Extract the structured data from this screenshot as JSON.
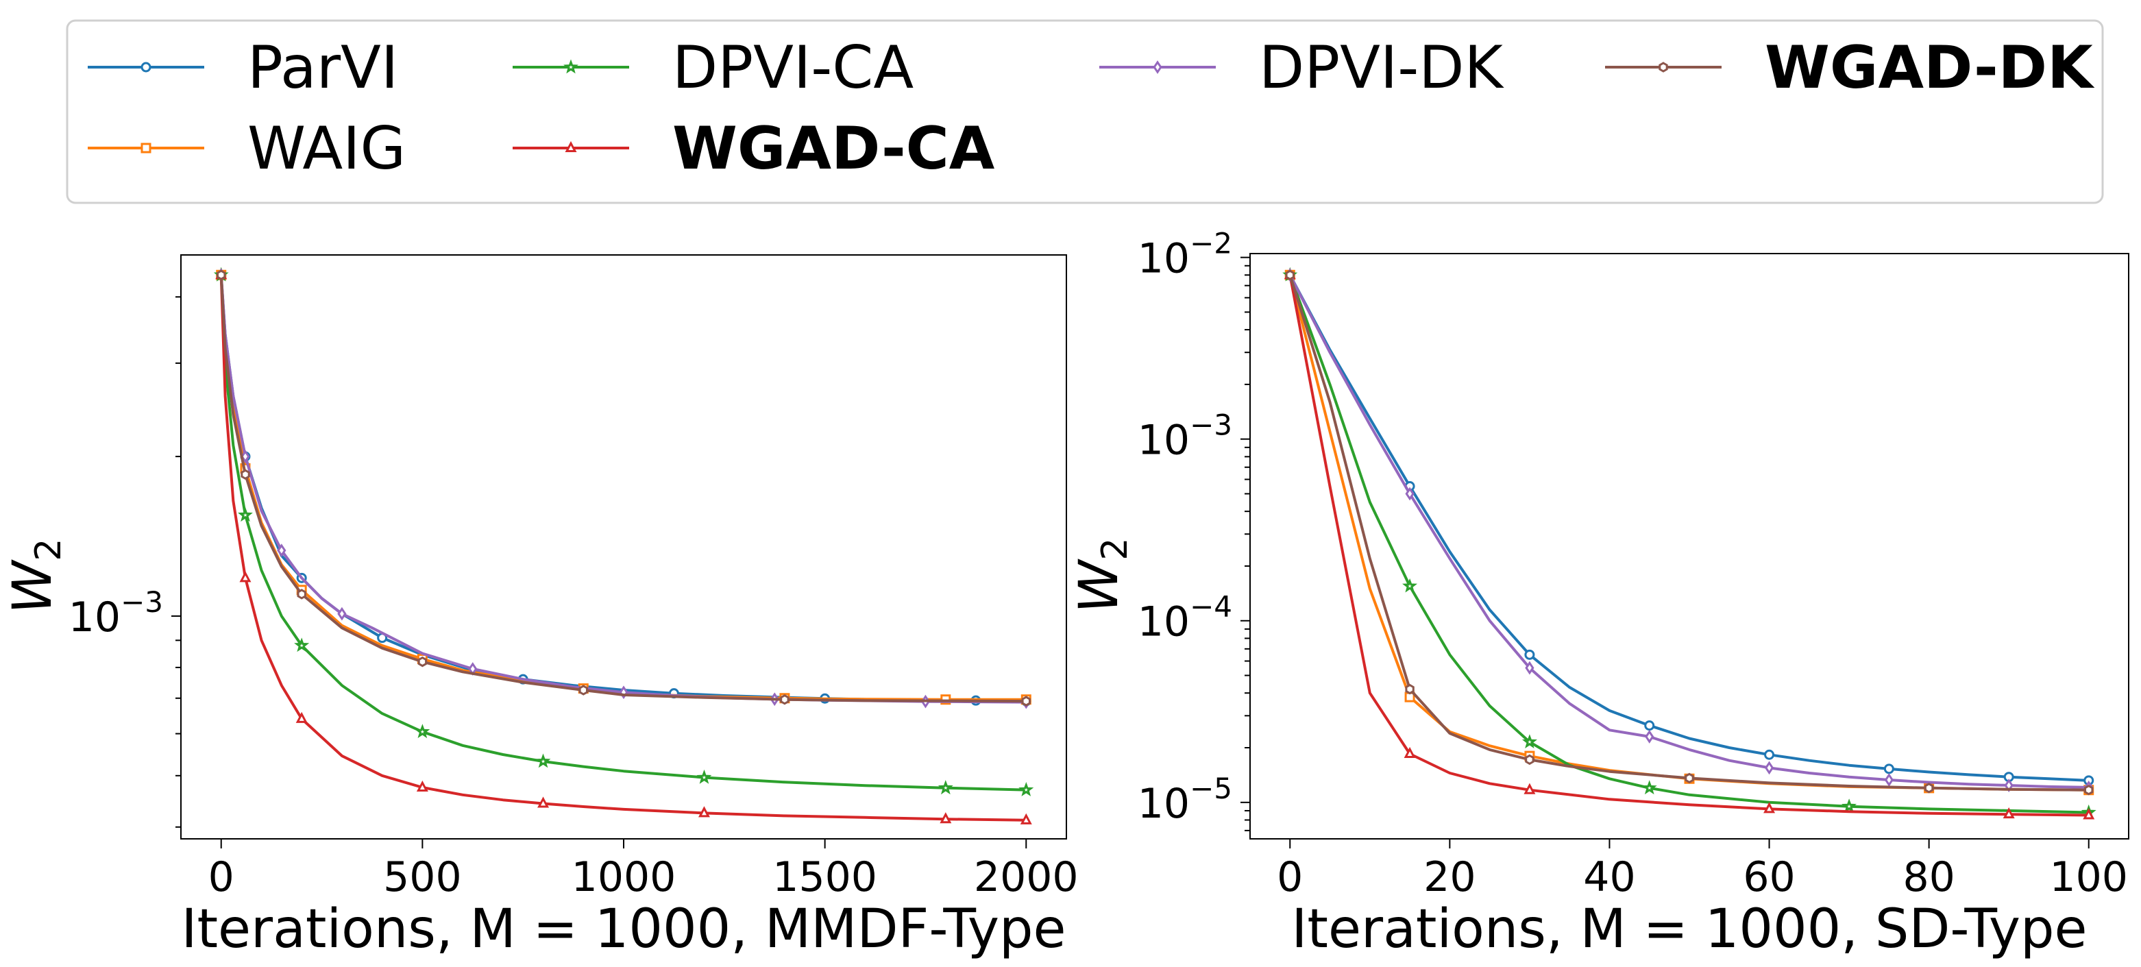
{
  "chart_data": [
    {
      "type": "line",
      "xlabel": "Iterations, M = 1000, MMDF-Type",
      "ylabel": "W",
      "ylabel_sub": "2",
      "yscale": "log",
      "xlim": [
        -100,
        2100
      ],
      "ylim": [
        0.00038,
        0.0048
      ],
      "x_ticks": [
        0,
        500,
        1000,
        1500,
        2000
      ],
      "x_tick_labels": [
        "0",
        "500",
        "1000",
        "1500",
        "2000"
      ],
      "y_major_ticks": [
        {
          "value": 0.001,
          "base": "10",
          "exp": "−3"
        }
      ],
      "series": [
        {
          "name": "ParVI",
          "x": [
            0,
            10,
            30,
            60,
            100,
            150,
            200,
            250,
            300,
            400,
            500,
            625,
            750,
            875,
            1000,
            1125,
            1250,
            1375,
            1500,
            1625,
            1750,
            1875,
            2000
          ],
          "y": [
            0.0044,
            0.0034,
            0.0026,
            0.002,
            0.0016,
            0.0013,
            0.00118,
            0.00108,
            0.00101,
            0.00091,
            0.000845,
            0.00079,
            0.00076,
            0.00074,
            0.000725,
            0.000715,
            0.000708,
            0.000703,
            0.000699,
            0.000696,
            0.000694,
            0.000693,
            0.000691
          ]
        },
        {
          "name": "WAIG",
          "x": [
            0,
            10,
            30,
            60,
            100,
            150,
            200,
            300,
            400,
            500,
            600,
            750,
            900,
            1000,
            1200,
            1400,
            1500,
            1600,
            1800,
            2000
          ],
          "y": [
            0.0044,
            0.0033,
            0.0025,
            0.0019,
            0.0015,
            0.00125,
            0.00112,
            0.00096,
            0.00088,
            0.00083,
            0.00079,
            0.000755,
            0.00073,
            0.000715,
            0.000705,
            0.0007,
            0.000698,
            0.000697,
            0.000696,
            0.000696
          ]
        },
        {
          "name": "DPVI-CA",
          "x": [
            0,
            10,
            30,
            60,
            100,
            150,
            200,
            300,
            400,
            500,
            600,
            700,
            800,
            900,
            1000,
            1200,
            1400,
            1600,
            1800,
            2000
          ],
          "y": [
            0.0044,
            0.003,
            0.0021,
            0.00155,
            0.00122,
            0.001,
            0.00088,
            0.00074,
            0.000655,
            0.000605,
            0.00057,
            0.000548,
            0.000532,
            0.00052,
            0.00051,
            0.000496,
            0.000486,
            0.000479,
            0.000474,
            0.00047
          ]
        },
        {
          "name": "WGAD-CA",
          "x": [
            0,
            10,
            30,
            60,
            100,
            150,
            200,
            300,
            400,
            500,
            600,
            700,
            800,
            900,
            1000,
            1200,
            1400,
            1600,
            1800,
            2000
          ],
          "y": [
            0.0044,
            0.0026,
            0.00165,
            0.00118,
            0.0009,
            0.00074,
            0.00064,
            0.000545,
            0.0005,
            0.000475,
            0.00046,
            0.00045,
            0.000443,
            0.000437,
            0.000432,
            0.000425,
            0.00042,
            0.000417,
            0.000414,
            0.000412
          ]
        },
        {
          "name": "DPVI-DK",
          "x": [
            0,
            10,
            30,
            60,
            100,
            125,
            150,
            200,
            250,
            300,
            375,
            500,
            625,
            750,
            875,
            1000,
            1125,
            1250,
            1375,
            1500,
            1625,
            1750,
            1875,
            2000
          ],
          "y": [
            0.0044,
            0.0034,
            0.0026,
            0.002,
            0.00158,
            0.00145,
            0.00133,
            0.00118,
            0.00108,
            0.00101,
            0.00095,
            0.00085,
            0.000795,
            0.00076,
            0.000735,
            0.000718,
            0.000708,
            0.000701,
            0.000697,
            0.000694,
            0.000692,
            0.00069,
            0.000689,
            0.000688
          ]
        },
        {
          "name": "WGAD-DK",
          "x": [
            0,
            10,
            30,
            60,
            100,
            150,
            200,
            300,
            400,
            500,
            600,
            750,
            900,
            1000,
            1200,
            1400,
            1600,
            1800,
            2000
          ],
          "y": [
            0.0044,
            0.0032,
            0.0024,
            0.00185,
            0.00148,
            0.00124,
            0.0011,
            0.00095,
            0.00087,
            0.00082,
            0.000785,
            0.00075,
            0.000725,
            0.00071,
            0.000702,
            0.000696,
            0.000693,
            0.000692,
            0.000691
          ]
        }
      ]
    },
    {
      "type": "line",
      "xlabel": "Iterations, M = 1000, SD-Type",
      "ylabel": "W",
      "ylabel_sub": "2",
      "yscale": "log",
      "xlim": [
        -5,
        105
      ],
      "ylim": [
        6.3e-06,
        0.0105
      ],
      "x_ticks": [
        0,
        20,
        40,
        60,
        80,
        100
      ],
      "x_tick_labels": [
        "0",
        "20",
        "40",
        "60",
        "80",
        "100"
      ],
      "y_major_ticks": [
        {
          "value": 0.01,
          "base": "10",
          "exp": "−2"
        },
        {
          "value": 0.001,
          "base": "10",
          "exp": "−3"
        },
        {
          "value": 0.0001,
          "base": "10",
          "exp": "−4"
        },
        {
          "value": 1e-05,
          "base": "10",
          "exp": "−5"
        }
      ],
      "series": [
        {
          "name": "ParVI",
          "x": [
            0,
            5,
            10,
            15,
            20,
            25,
            30,
            35,
            40,
            45,
            50,
            55,
            60,
            65,
            70,
            75,
            80,
            85,
            90,
            95,
            100
          ],
          "y": [
            0.008,
            0.0031,
            0.0013,
            0.00055,
            0.00024,
            0.000115,
            6.5e-05,
            4.3e-05,
            3.2e-05,
            2.65e-05,
            2.25e-05,
            2e-05,
            1.83e-05,
            1.7e-05,
            1.6e-05,
            1.53e-05,
            1.47e-05,
            1.42e-05,
            1.38e-05,
            1.35e-05,
            1.32e-05
          ]
        },
        {
          "name": "WAIG",
          "x": [
            0,
            5,
            10,
            15,
            20,
            25,
            30,
            35,
            40,
            50,
            60,
            70,
            80,
            90,
            100
          ],
          "y": [
            0.008,
            0.0011,
            0.00015,
            3.8e-05,
            2.45e-05,
            2.05e-05,
            1.8e-05,
            1.63e-05,
            1.5e-05,
            1.35e-05,
            1.27e-05,
            1.22e-05,
            1.2e-05,
            1.18e-05,
            1.17e-05
          ]
        },
        {
          "name": "DPVI-CA",
          "x": [
            0,
            5,
            10,
            15,
            20,
            25,
            30,
            35,
            40,
            45,
            50,
            60,
            70,
            80,
            90,
            100
          ],
          "y": [
            0.008,
            0.002,
            0.00045,
            0.000155,
            6.5e-05,
            3.4e-05,
            2.15e-05,
            1.6e-05,
            1.35e-05,
            1.2e-05,
            1.1e-05,
            1e-05,
            9.5e-06,
            9.2e-06,
            9e-06,
            8.8e-06
          ]
        },
        {
          "name": "WGAD-CA",
          "x": [
            0,
            5,
            10,
            15,
            20,
            25,
            30,
            40,
            50,
            60,
            70,
            80,
            90,
            100
          ],
          "y": [
            0.008,
            0.00055,
            4e-05,
            1.85e-05,
            1.45e-05,
            1.27e-05,
            1.17e-05,
            1.04e-05,
            9.7e-06,
            9.2e-06,
            8.9e-06,
            8.7e-06,
            8.6e-06,
            8.5e-06
          ]
        },
        {
          "name": "DPVI-DK",
          "x": [
            0,
            5,
            10,
            15,
            20,
            25,
            30,
            35,
            40,
            45,
            50,
            55,
            60,
            65,
            70,
            75,
            80,
            85,
            90,
            95,
            100
          ],
          "y": [
            0.008,
            0.003,
            0.0012,
            0.0005,
            0.00022,
            0.0001,
            5.5e-05,
            3.5e-05,
            2.5e-05,
            2.3e-05,
            1.95e-05,
            1.7e-05,
            1.55e-05,
            1.45e-05,
            1.38e-05,
            1.33e-05,
            1.29e-05,
            1.26e-05,
            1.24e-05,
            1.22e-05,
            1.21e-05
          ]
        },
        {
          "name": "WGAD-DK",
          "x": [
            0,
            5,
            10,
            15,
            20,
            25,
            30,
            35,
            40,
            50,
            60,
            70,
            80,
            90,
            100
          ],
          "y": [
            0.008,
            0.0016,
            0.00022,
            4.2e-05,
            2.4e-05,
            1.95e-05,
            1.72e-05,
            1.58e-05,
            1.48e-05,
            1.36e-05,
            1.28e-05,
            1.23e-05,
            1.2e-05,
            1.18e-05,
            1.17e-05
          ]
        }
      ]
    }
  ],
  "legend": {
    "position": "top",
    "entries": [
      {
        "name": "ParVI",
        "color": "#1f77b4",
        "marker": "circle",
        "bold": false
      },
      {
        "name": "DPVI-CA",
        "color": "#2ca02c",
        "marker": "star",
        "bold": false
      },
      {
        "name": "DPVI-DK",
        "color": "#9467bd",
        "marker": "diamond",
        "bold": false
      },
      {
        "name": "WGAD-DK",
        "color": "#8c564b",
        "marker": "hexagon",
        "bold": true
      },
      {
        "name": "WAIG",
        "color": "#ff7f0e",
        "marker": "square",
        "bold": false
      },
      {
        "name": "WGAD-CA",
        "color": "#d62728",
        "marker": "triangle",
        "bold": true
      }
    ]
  },
  "series_styles": {
    "ParVI": {
      "color": "#1f77b4",
      "marker": "circle"
    },
    "WAIG": {
      "color": "#ff7f0e",
      "marker": "square"
    },
    "DPVI-CA": {
      "color": "#2ca02c",
      "marker": "star"
    },
    "WGAD-CA": {
      "color": "#d62728",
      "marker": "triangle"
    },
    "DPVI-DK": {
      "color": "#9467bd",
      "marker": "diamond"
    },
    "WGAD-DK": {
      "color": "#8c564b",
      "marker": "hexagon"
    }
  }
}
